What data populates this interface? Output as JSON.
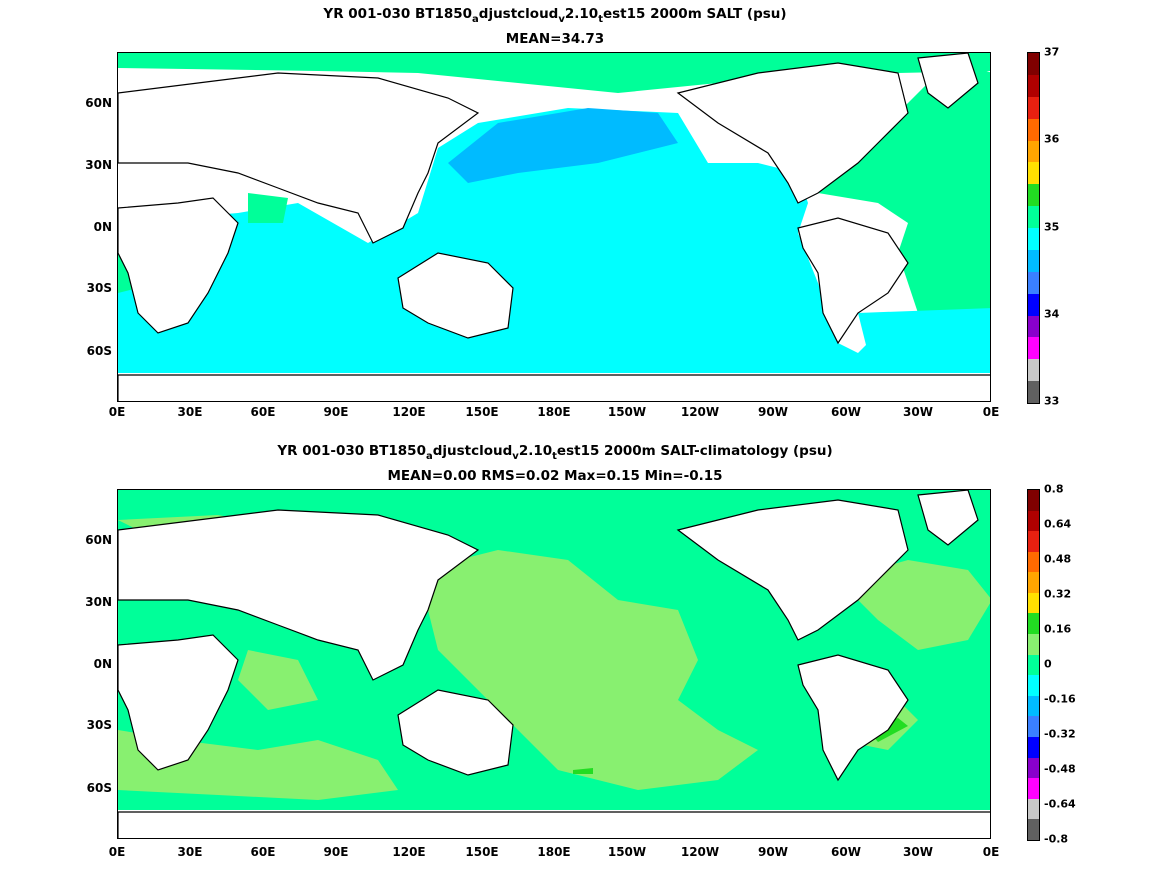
{
  "panel1": {
    "title_parts": [
      "YR 001-030 BT1850",
      "a",
      "djustcloud",
      "v",
      "2.10",
      "t",
      "est15 2000m SALT (psu)"
    ],
    "subtitle": "MEAN=34.73",
    "colorbar": {
      "labels": [
        "37",
        "36",
        "35",
        "34",
        "33"
      ],
      "colors": [
        "#800000",
        "#b00000",
        "#e82010",
        "#ff6a00",
        "#ffa500",
        "#ffe000",
        "#22dd22",
        "#00ff99",
        "#00ffff",
        "#00bbff",
        "#3a80ff",
        "#0000ff",
        "#8800cc",
        "#ff00ff",
        "#c8c8c8",
        "#606060"
      ]
    }
  },
  "panel2": {
    "title_parts": [
      "YR 001-030 BT1850",
      "a",
      "djustcloud",
      "v",
      "2.10",
      "t",
      "est15 2000m SALT-climatology (psu)"
    ],
    "subtitle": "MEAN=0.00   RMS=0.02   Max=0.15   Min=-0.15",
    "colorbar": {
      "labels": [
        "0.8",
        "0.64",
        "0.48",
        "0.32",
        "0.16",
        "0",
        "-0.16",
        "-0.32",
        "-0.48",
        "-0.64",
        "-0.8"
      ],
      "colors": [
        "#800000",
        "#b00000",
        "#e82010",
        "#ff6a00",
        "#ffa500",
        "#ffe000",
        "#22dd22",
        "#88f070",
        "#00ff99",
        "#00ffff",
        "#00bbff",
        "#3a80ff",
        "#0000ff",
        "#8800cc",
        "#ff00ff",
        "#c8c8c8",
        "#606060"
      ]
    }
  },
  "axes": {
    "lon_labels": [
      "0E",
      "30E",
      "60E",
      "90E",
      "120E",
      "150E",
      "180E",
      "150W",
      "120W",
      "90W",
      "60W",
      "30W",
      "0E"
    ],
    "lat_labels": [
      "60N",
      "30N",
      "0N",
      "30S",
      "60S"
    ]
  }
}
